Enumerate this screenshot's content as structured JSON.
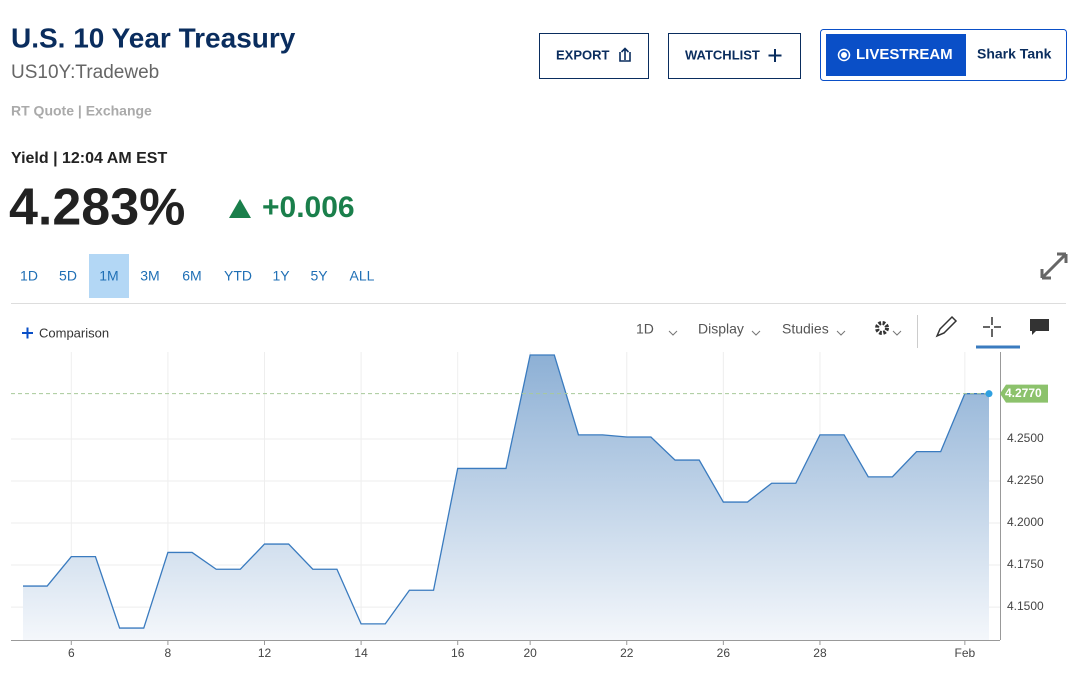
{
  "header": {
    "title": "U.S. 10 Year Treasury",
    "symbol": "US10Y:Tradeweb",
    "source": "RT Quote | Exchange",
    "buttons": {
      "export": "EXPORT",
      "watchlist": "WATCHLIST",
      "livestream": "LIVESTREAM",
      "show": "Shark Tank"
    }
  },
  "quote": {
    "label": "Yield | 12:04 AM EST",
    "price": "4.283%",
    "change": "+0.006"
  },
  "ranges": {
    "items": [
      "1D",
      "5D",
      "1M",
      "3M",
      "6M",
      "YTD",
      "1Y",
      "5Y",
      "ALL"
    ],
    "selected": 2
  },
  "toolbar": {
    "comparison": "Comparison",
    "interval": "1D",
    "display": "Display",
    "studies": "Studies"
  },
  "chart_data": {
    "type": "area",
    "categories": [
      null,
      null,
      "6",
      null,
      null,
      null,
      "8",
      null,
      null,
      null,
      "12",
      null,
      null,
      null,
      "14",
      null,
      null,
      null,
      "16",
      null,
      null,
      "20",
      null,
      null,
      null,
      "22",
      null,
      null,
      null,
      "26",
      null,
      null,
      null,
      "28",
      null,
      null,
      null,
      null,
      null,
      "Feb",
      null
    ],
    "values": [
      4.1625,
      4.1625,
      4.18,
      4.18,
      4.1375,
      4.1375,
      4.1825,
      4.1825,
      4.1725,
      4.1725,
      4.1875,
      4.1875,
      4.1725,
      4.1725,
      4.14,
      4.14,
      4.16,
      4.16,
      4.2325,
      4.2325,
      4.2325,
      4.3,
      4.3,
      4.2525,
      4.2525,
      4.2512,
      4.2512,
      4.2375,
      4.2375,
      4.2125,
      4.2125,
      4.2237,
      4.2237,
      4.2525,
      4.2525,
      4.2275,
      4.2275,
      4.2425,
      4.2425,
      4.277,
      4.277
    ],
    "color": "#3a7bbf",
    "ylim": [
      4.1304,
      4.3018
    ],
    "yticks": [
      {
        "value": 4.15,
        "label": "4.1500"
      },
      {
        "value": 4.175,
        "label": "4.1750"
      },
      {
        "value": 4.2,
        "label": "4.2000"
      },
      {
        "value": 4.225,
        "label": "4.2250"
      },
      {
        "value": 4.25,
        "label": "4.2500"
      }
    ],
    "last": {
      "value": 4.277,
      "label": "4.2770"
    },
    "grid": true
  }
}
